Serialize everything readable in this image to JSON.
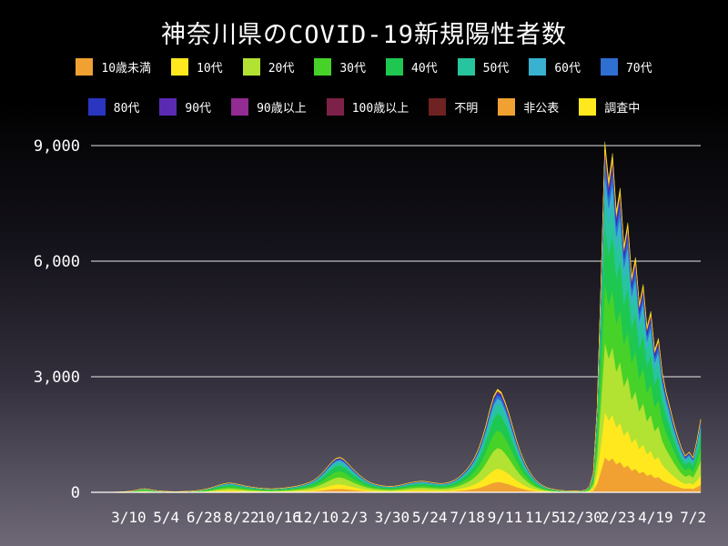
{
  "title": "神奈川県のCOVID-19新規陽性者数",
  "legend": {
    "rows": [
      [
        "10歳未満",
        "10代",
        "20代",
        "30代",
        "40代",
        "50代",
        "60代",
        "70代"
      ],
      [
        "80代",
        "90代",
        "90歳以上",
        "100歳以上",
        "不明",
        "非公表",
        "調査中"
      ]
    ]
  },
  "colors": {
    "background_top": "#000000",
    "background_bottom": "#6e6876",
    "text": "#ffffff",
    "gridline": "#ffffff"
  },
  "chart_data": {
    "type": "area",
    "stacked": true,
    "title": "神奈川県のCOVID-19新規陽性者数",
    "ylabel": "",
    "xlabel": "",
    "ylim": [
      0,
      9500
    ],
    "yticks": [
      0,
      3000,
      6000,
      9000
    ],
    "ytick_labels": [
      "0",
      "3,000",
      "6,000",
      "9,000"
    ],
    "xtick_labels": [
      "3/10",
      "5/4",
      "6/28",
      "8/22",
      "10/16",
      "12/10",
      "2/3",
      "3/30",
      "5/24",
      "7/18",
      "9/11",
      "11/5",
      "12/30",
      "2/23",
      "4/19",
      "7/2"
    ],
    "legend_position": "top",
    "grid": true,
    "totals": [
      0,
      0,
      1,
      2,
      3,
      5,
      8,
      10,
      14,
      18,
      25,
      40,
      60,
      85,
      95,
      80,
      60,
      45,
      35,
      28,
      22,
      18,
      16,
      18,
      22,
      26,
      30,
      38,
      50,
      65,
      85,
      110,
      140,
      175,
      205,
      230,
      245,
      235,
      215,
      195,
      170,
      150,
      135,
      120,
      110,
      100,
      95,
      90,
      95,
      100,
      110,
      120,
      135,
      150,
      170,
      195,
      225,
      260,
      310,
      380,
      470,
      580,
      700,
      810,
      890,
      910,
      850,
      750,
      640,
      540,
      450,
      370,
      300,
      250,
      215,
      190,
      170,
      160,
      155,
      160,
      175,
      195,
      220,
      245,
      265,
      280,
      290,
      285,
      270,
      255,
      240,
      230,
      235,
      250,
      280,
      330,
      400,
      490,
      600,
      730,
      900,
      1120,
      1400,
      1750,
      2150,
      2500,
      2680,
      2600,
      2350,
      2050,
      1700,
      1350,
      1050,
      800,
      600,
      440,
      320,
      230,
      165,
      120,
      90,
      70,
      55,
      45,
      40,
      38,
      36,
      38,
      42,
      60,
      150,
      500,
      2200,
      5500,
      9100,
      8100,
      8800,
      7300,
      7900,
      6400,
      7000,
      5600,
      6100,
      4900,
      5400,
      4300,
      4700,
      3700,
      4000,
      3100,
      2600,
      2200,
      1800,
      1450,
      1150,
      950,
      1050,
      900,
      1350,
      1900
    ],
    "series": [
      {
        "name": "10歳未満",
        "color": "#f0a132",
        "approx_fraction": 0.1
      },
      {
        "name": "10代",
        "color": "#ffe81e",
        "approx_fraction": 0.13
      },
      {
        "name": "20代",
        "color": "#b2e232",
        "approx_fraction": 0.2
      },
      {
        "name": "30代",
        "color": "#46d228",
        "approx_fraction": 0.17
      },
      {
        "name": "40代",
        "color": "#1ec850",
        "approx_fraction": 0.16
      },
      {
        "name": "50代",
        "color": "#28c49e",
        "approx_fraction": 0.1
      },
      {
        "name": "60代",
        "color": "#38b2d0",
        "approx_fraction": 0.05
      },
      {
        "name": "70代",
        "color": "#2f6fd2",
        "approx_fraction": 0.035
      },
      {
        "name": "80代",
        "color": "#2a35c0",
        "approx_fraction": 0.02
      },
      {
        "name": "90代",
        "color": "#5a2ab2",
        "approx_fraction": 0.008
      },
      {
        "name": "90歳以上",
        "color": "#922b92",
        "approx_fraction": 0.004
      },
      {
        "name": "100歳以上",
        "color": "#7e2148",
        "approx_fraction": 0.001
      },
      {
        "name": "不明",
        "color": "#6e2222",
        "approx_fraction": 0.001
      },
      {
        "name": "非公表",
        "color": "#f0a132",
        "approx_fraction": 0.01
      },
      {
        "name": "調査中",
        "color": "#ffe81e",
        "approx_fraction": 0.011
      }
    ]
  }
}
